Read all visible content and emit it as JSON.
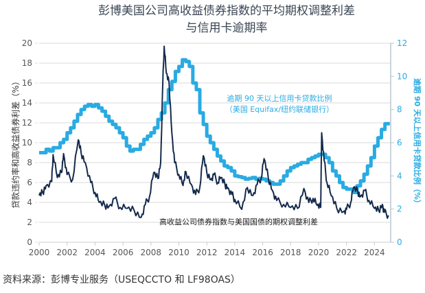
{
  "chart_data": {
    "type": "line",
    "title": [
      "彭博美国公司高收益债券指数的平均期权调整利差",
      "与信用卡逾期率"
    ],
    "ylabel": "贷款违约率和高收益债券利差（%）",
    "ylabel_right": "逾期 90 天以上信用卡贷款比例（%）",
    "xlim": [
      2000,
      2025
    ],
    "ylim": [
      0,
      20
    ],
    "ylim_right": [
      0,
      12
    ],
    "x_ticks": [
      "2000",
      "2002",
      "2004",
      "2006",
      "2008",
      "2010",
      "2012",
      "2014",
      "2016",
      "2018",
      "2020",
      "2022",
      "2024"
    ],
    "y_ticks": [
      "0",
      "2",
      "4",
      "6",
      "8",
      "10",
      "12",
      "14",
      "16",
      "18",
      "20"
    ],
    "y_ticks_right": [
      "0",
      "2",
      "4",
      "6",
      "8",
      "10",
      "12"
    ],
    "grid": "horizontal",
    "series": [
      {
        "name": "高收益公司债券指数与美国国债的期权调整利差",
        "axis": "left",
        "color": "#13294b",
        "x": [
          2000.0,
          2000.25,
          2000.5,
          2000.9,
          2001.0,
          2001.3,
          2001.6,
          2001.75,
          2002.0,
          2002.4,
          2002.8,
          2003.0,
          2003.3,
          2003.7,
          2004.0,
          2004.3,
          2004.7,
          2005.0,
          2005.4,
          2005.8,
          2006.3,
          2006.8,
          2007.3,
          2007.6,
          2007.9,
          2008.2,
          2008.5,
          2008.7,
          2008.85,
          2008.95,
          2009.1,
          2009.3,
          2009.5,
          2009.7,
          2010.0,
          2010.3,
          2010.5,
          2010.9,
          2011.2,
          2011.5,
          2011.75,
          2012.0,
          2012.3,
          2012.5,
          2012.8,
          2013.0,
          2013.3,
          2013.5,
          2013.8,
          2014.0,
          2014.5,
          2014.9,
          2015.3,
          2015.6,
          2015.9,
          2016.1,
          2016.4,
          2016.7,
          2017.0,
          2017.5,
          2018.0,
          2018.5,
          2018.95,
          2019.3,
          2019.6,
          2019.9,
          2020.15,
          2020.22,
          2020.4,
          2020.6,
          2020.9,
          2021.3,
          2021.8,
          2022.0,
          2022.3,
          2022.5,
          2022.8,
          2023.0,
          2023.3,
          2023.6,
          2024.0,
          2024.3,
          2024.57,
          2024.7,
          2025.0
        ],
        "values": [
          4.7,
          5.0,
          5.7,
          6.1,
          8.8,
          6.5,
          7.0,
          8.9,
          6.8,
          6.3,
          10.3,
          9.0,
          8.0,
          6.0,
          5.0,
          4.0,
          3.7,
          3.6,
          4.4,
          3.5,
          3.4,
          3.2,
          2.5,
          3.8,
          4.6,
          7.0,
          6.4,
          8.0,
          16.0,
          19.7,
          17.0,
          16.0,
          11.0,
          8.0,
          6.8,
          5.7,
          7.1,
          5.8,
          4.8,
          5.5,
          8.7,
          7.0,
          6.3,
          6.8,
          6.0,
          6.5,
          5.8,
          5.5,
          4.8,
          4.3,
          3.3,
          5.5,
          4.7,
          5.8,
          6.5,
          8.4,
          6.5,
          5.2,
          4.2,
          3.8,
          3.5,
          3.4,
          5.4,
          4.0,
          4.4,
          3.7,
          3.5,
          11.0,
          8.2,
          6.0,
          4.7,
          3.4,
          3.1,
          3.3,
          4.0,
          5.5,
          5.1,
          4.6,
          5.2,
          4.2,
          3.4,
          3.2,
          3.8,
          3.0,
          2.7
        ]
      },
      {
        "name": "逾期 90 天以上信用卡贷款比例（美国 Equifax/纽约联储银行）",
        "axis": "right",
        "color": "#29abe2",
        "x": [
          2000.0,
          2000.25,
          2000.5,
          2000.75,
          2001.0,
          2001.25,
          2001.5,
          2001.75,
          2002.0,
          2002.25,
          2002.5,
          2002.75,
          2003.0,
          2003.25,
          2003.5,
          2003.75,
          2004.0,
          2004.25,
          2004.5,
          2004.75,
          2005.0,
          2005.25,
          2005.5,
          2005.75,
          2006.0,
          2006.25,
          2006.5,
          2006.75,
          2007.0,
          2007.25,
          2007.5,
          2007.75,
          2008.0,
          2008.25,
          2008.5,
          2008.75,
          2009.0,
          2009.25,
          2009.5,
          2009.75,
          2010.0,
          2010.25,
          2010.5,
          2010.75,
          2011.0,
          2011.25,
          2011.5,
          2011.75,
          2012.0,
          2012.25,
          2012.5,
          2012.75,
          2013.0,
          2013.25,
          2013.5,
          2013.75,
          2014.0,
          2014.25,
          2014.5,
          2014.75,
          2015.0,
          2015.25,
          2015.5,
          2015.75,
          2016.0,
          2016.25,
          2016.5,
          2016.75,
          2017.0,
          2017.25,
          2017.5,
          2017.75,
          2018.0,
          2018.25,
          2018.5,
          2018.75,
          2019.0,
          2019.25,
          2019.5,
          2019.75,
          2020.0,
          2020.25,
          2020.5,
          2020.75,
          2021.0,
          2021.25,
          2021.5,
          2021.75,
          2022.0,
          2022.25,
          2022.5,
          2022.75,
          2023.0,
          2023.25,
          2023.5,
          2023.75,
          2024.0,
          2024.25,
          2024.5,
          2024.75,
          2025.0
        ],
        "values": [
          5.4,
          5.4,
          5.6,
          5.5,
          5.7,
          5.7,
          6.0,
          6.2,
          6.6,
          6.9,
          7.3,
          7.7,
          8.0,
          8.2,
          8.3,
          8.2,
          8.3,
          8.1,
          7.9,
          7.6,
          7.3,
          7.1,
          6.9,
          6.6,
          6.3,
          5.8,
          5.5,
          5.6,
          5.6,
          5.9,
          6.2,
          6.4,
          6.6,
          6.9,
          7.4,
          7.8,
          8.4,
          9.2,
          9.7,
          10.3,
          10.6,
          11.0,
          10.9,
          10.6,
          9.6,
          9.2,
          7.8,
          7.1,
          6.4,
          6.0,
          5.6,
          5.2,
          4.9,
          4.6,
          4.5,
          4.3,
          4.0,
          3.95,
          3.9,
          3.8,
          3.85,
          3.9,
          3.8,
          3.85,
          3.8,
          3.7,
          3.6,
          3.5,
          3.5,
          3.7,
          4.0,
          4.3,
          4.5,
          4.6,
          4.7,
          4.8,
          4.8,
          5.0,
          5.1,
          5.2,
          5.3,
          5.3,
          5.1,
          4.8,
          4.3,
          4.0,
          3.6,
          3.3,
          3.2,
          3.2,
          3.0,
          3.4,
          3.7,
          4.1,
          4.6,
          5.1,
          5.8,
          6.3,
          6.8,
          7.15,
          7.15
        ]
      }
    ],
    "annotations": {
      "series_left_label": "高收益公司债券指数与美国国债的期权调整利差",
      "series_right_label_line1": "逾期 90 天以上信用卡贷款比例",
      "series_right_label_line2": "（美国 Equifax/纽约联储银行）"
    }
  },
  "source": "资料来源：彭博专业服务（USEQCCTO 和 LF98OAS）"
}
